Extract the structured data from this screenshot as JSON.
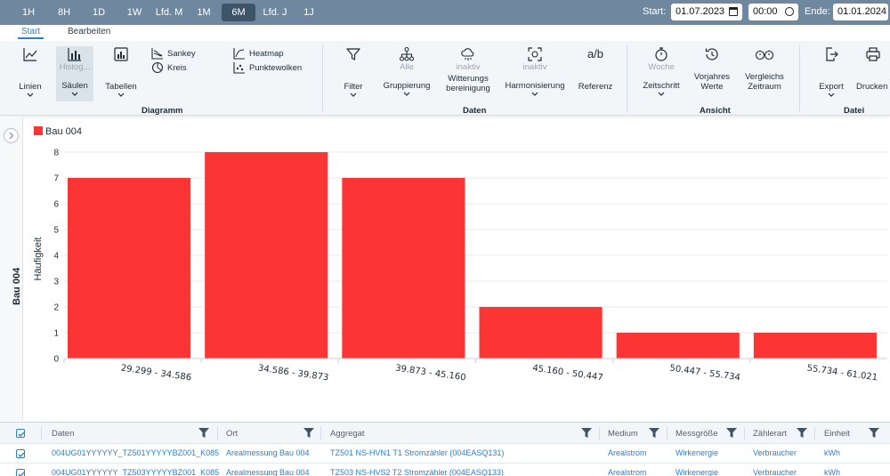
{
  "toolbar": {
    "ranges": [
      {
        "label": "1H",
        "active": false
      },
      {
        "label": "8H",
        "active": false
      },
      {
        "label": "1D",
        "active": false
      },
      {
        "label": "1W",
        "active": false
      },
      {
        "label": "Lfd. M",
        "active": false
      },
      {
        "label": "1M",
        "active": false
      },
      {
        "label": "6M",
        "active": true
      },
      {
        "label": "Lfd. J",
        "active": false
      },
      {
        "label": "1J",
        "active": false
      }
    ],
    "start_label": "Start:",
    "start_date": "01.07.2023",
    "start_time": "00:00",
    "end_label": "Ende:",
    "end_date": "01.01.2024"
  },
  "ribbon": {
    "tabs": [
      "Start",
      "Bearbeiten"
    ],
    "diagram": {
      "linien": "Linien",
      "histogram": "Histog...",
      "saeulen": "Säulen",
      "tabellen": "Tabellen",
      "sankey": "Sankey",
      "kreis": "Kreis",
      "heatmap": "Heatmap",
      "punktewolken": "Punktewolken",
      "group": "Diagramm"
    },
    "daten": {
      "filter": "Filter",
      "alle": "Alle",
      "gruppierung": "Gruppierung",
      "inaktiv1": "inaktiv",
      "witterung": "Witterungs bereinigung",
      "inaktiv2": "inaktiv",
      "harmonisierung": "Harmonisierung",
      "referenz_icon": "a/b",
      "referenz": "Referenz",
      "group": "Daten"
    },
    "ansicht": {
      "woche": "Woche",
      "zeitschritt": "Zeitschritt",
      "vorjahres": "Vorjahres Werte",
      "vergleichs": "Vergleichs Zeitraum",
      "group": "Ansicht"
    },
    "datei": {
      "export": "Export",
      "drucken": "Drucken",
      "group": "Datei"
    }
  },
  "panel": {
    "label": "Bau 004"
  },
  "chart_data": {
    "type": "bar",
    "categories": [
      "29.299 - 34.586",
      "34.586 - 39.873",
      "39.873 - 45.160",
      "45.160 - 50.447",
      "50.447 - 55.734",
      "55.734 - 61.021"
    ],
    "series": [
      {
        "name": "Bau 004",
        "values": [
          7,
          8,
          7,
          2,
          1,
          1
        ]
      }
    ],
    "ylabel": "Häufigkeit",
    "xlabel": "",
    "ylim": [
      0,
      8
    ],
    "yticks": [
      0,
      1,
      2,
      3,
      4,
      5,
      6,
      7,
      8
    ],
    "color": "#fb3434",
    "grid": true,
    "legend": "top-left"
  },
  "table": {
    "headers": [
      "Daten",
      "Ort",
      "Aggregat",
      "Medium",
      "Messgröße",
      "Zählerart",
      "Einheit"
    ],
    "rows": [
      [
        "004UG01YYYYYY_TZ501YYYYYBZ001_K085",
        "Arealmessung Bau 004",
        "TZ501 NS-HVN1 T1 Stromzähler (004EASQ131)",
        "Arealstrom",
        "Wirkenergie",
        "Verbraucher",
        "kWh"
      ],
      [
        "004UG01YYYYYY_TZ503YYYYYBZ001_K085",
        "Arealmessung Bau 004",
        "TZ503 NS-HVS2 T2 Stromzähler (004EASQ133)",
        "Arealstrom",
        "Wirkenergie",
        "Verbraucher",
        "kWh"
      ]
    ]
  }
}
